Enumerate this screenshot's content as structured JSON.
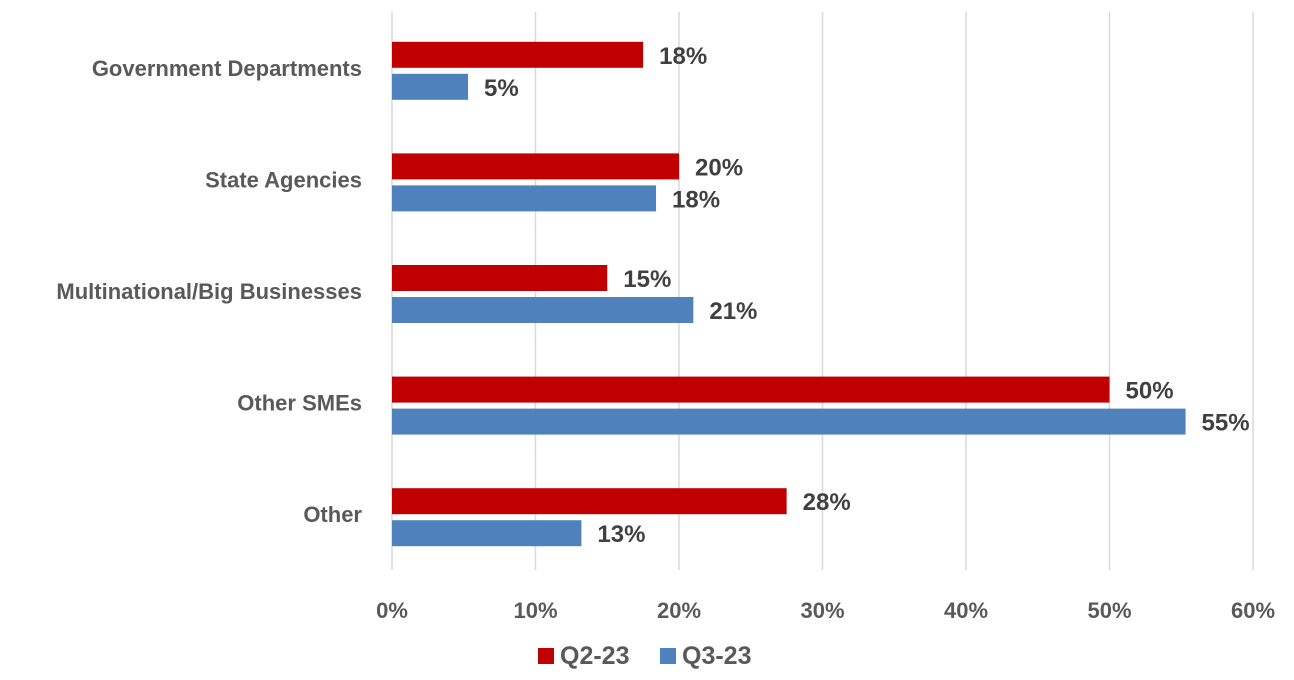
{
  "chart_data": {
    "type": "bar",
    "orientation": "horizontal",
    "categories": [
      "Government Departments",
      "State Agencies",
      "Multinational/Big Businesses",
      "Other SMEs",
      "Other"
    ],
    "series": [
      {
        "name": "Q2-23",
        "color": "#c00000",
        "values": [
          17.5,
          20.0,
          15.0,
          50.0,
          27.5
        ],
        "labels": [
          "18%",
          "20%",
          "15%",
          "50%",
          "28%"
        ]
      },
      {
        "name": "Q3-23",
        "color": "#4f81bd",
        "values": [
          5.3,
          18.4,
          21.0,
          55.3,
          13.2
        ],
        "labels": [
          "5%",
          "18%",
          "21%",
          "55%",
          "13%"
        ]
      }
    ],
    "xlim": [
      0,
      60
    ],
    "xticks": [
      0,
      10,
      20,
      30,
      40,
      50,
      60
    ],
    "xtick_labels": [
      "0%",
      "10%",
      "20%",
      "30%",
      "40%",
      "50%",
      "60%"
    ],
    "grid": true,
    "legend_position": "bottom"
  }
}
